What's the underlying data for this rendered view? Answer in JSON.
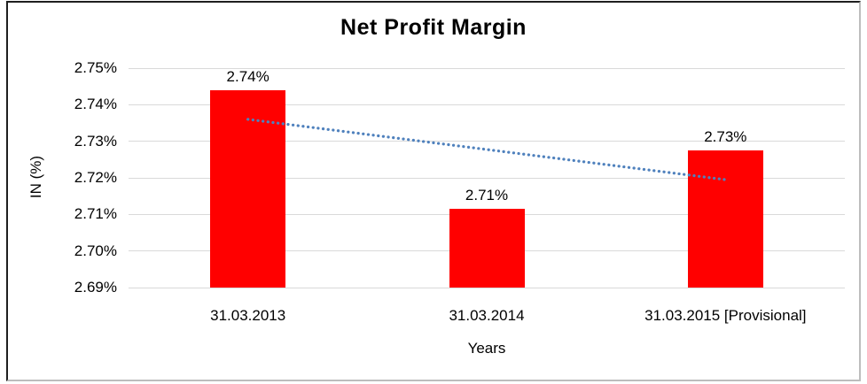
{
  "chart_data": {
    "type": "bar",
    "title": "Net Profit Margin",
    "xlabel": "Years",
    "ylabel": "IN (%)",
    "categories": [
      "31.03.2013",
      "31.03.2014",
      "31.03.2015 [Provisional]"
    ],
    "values": [
      2.744,
      2.7115,
      2.7275
    ],
    "data_labels": [
      "2.74%",
      "2.71%",
      "2.73%"
    ],
    "ylim": [
      2.69,
      2.75
    ],
    "yticks": [
      {
        "value": 2.69,
        "label": "2.69%"
      },
      {
        "value": 2.7,
        "label": "2.70%"
      },
      {
        "value": 2.71,
        "label": "2.71%"
      },
      {
        "value": 2.72,
        "label": "2.72%"
      },
      {
        "value": 2.73,
        "label": "2.73%"
      },
      {
        "value": 2.74,
        "label": "2.74%"
      },
      {
        "value": 2.75,
        "label": "2.75%"
      }
    ],
    "grid": true,
    "legend": "none",
    "bar_color": "#ff0000",
    "gridline_color": "#d9d9d9",
    "trendline": {
      "type": "linear",
      "style": "dotted",
      "color": "#4f81bd",
      "start_value": 2.736,
      "end_value": 2.7195
    }
  }
}
